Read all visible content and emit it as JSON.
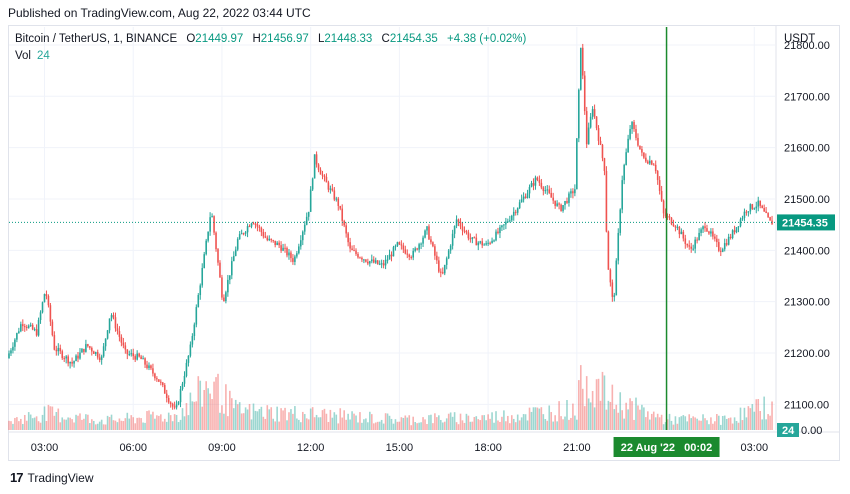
{
  "published": "Published on TradingView.com, Aug 22, 2022 03:44 UTC",
  "legend": {
    "symbol": "Bitcoin / TetherUS, 1, BINANCE",
    "open_key": "O",
    "open": "21449.97",
    "high_key": "H",
    "high": "21456.97",
    "low_key": "L",
    "low": "21448.33",
    "close_key": "C",
    "close": "21454.35",
    "change": "+4.38 (+0.02%)"
  },
  "volume_legend": {
    "label": "Vol",
    "value": "24"
  },
  "currency": "USDT",
  "footer": {
    "logo": "17",
    "brand": "TradingView"
  },
  "colors": {
    "up": "#26a69a",
    "down": "#ef5350",
    "crosshair": "#1b8a2e",
    "last_price": "#089981"
  },
  "chart_data": {
    "type": "candlestick",
    "ylim": [
      21050,
      21835
    ],
    "y_ticks": [
      {
        "value": 21100,
        "label": "21100.00"
      },
      {
        "value": 21200,
        "label": "21200.00"
      },
      {
        "value": 21300,
        "label": "21300.00"
      },
      {
        "value": 21400,
        "label": "21400.00"
      },
      {
        "value": 21500,
        "label": "21500.00"
      },
      {
        "value": 21600,
        "label": "21600.00"
      },
      {
        "value": 21700,
        "label": "21700.00"
      },
      {
        "value": 21800,
        "label": "21800.00"
      }
    ],
    "x_range_hours": [
      1.8,
      27.7
    ],
    "x_ticks": [
      {
        "hour": 3,
        "label": "03:00"
      },
      {
        "hour": 6,
        "label": "06:00"
      },
      {
        "hour": 9,
        "label": "09:00"
      },
      {
        "hour": 12,
        "label": "12:00"
      },
      {
        "hour": 15,
        "label": "15:00"
      },
      {
        "hour": 18,
        "label": "18:00"
      },
      {
        "hour": 21,
        "label": "21:00"
      },
      {
        "hour": 27,
        "label": "03:00"
      }
    ],
    "crosshair": {
      "hour": 24.033,
      "label": "22 Aug '22   00:02"
    },
    "last_price": {
      "value": 21454.35,
      "label": "21454.35"
    },
    "volume_last": {
      "value": 24,
      "label": "24"
    },
    "volume_axis_label": "0.00",
    "price_path": [
      [
        1.8,
        21190
      ],
      [
        2.3,
        21260
      ],
      [
        2.8,
        21240
      ],
      [
        3.1,
        21325
      ],
      [
        3.4,
        21210
      ],
      [
        4.0,
        21180
      ],
      [
        4.5,
        21215
      ],
      [
        5.0,
        21190
      ],
      [
        5.3,
        21280
      ],
      [
        5.8,
        21200
      ],
      [
        6.3,
        21190
      ],
      [
        6.9,
        21150
      ],
      [
        7.5,
        21085
      ],
      [
        8.0,
        21210
      ],
      [
        8.5,
        21400
      ],
      [
        8.7,
        21480
      ],
      [
        9.1,
        21300
      ],
      [
        9.6,
        21420
      ],
      [
        10.1,
        21460
      ],
      [
        10.6,
        21420
      ],
      [
        11.0,
        21410
      ],
      [
        11.5,
        21380
      ],
      [
        12.0,
        21480
      ],
      [
        12.2,
        21580
      ],
      [
        12.5,
        21540
      ],
      [
        13.0,
        21490
      ],
      [
        13.4,
        21400
      ],
      [
        14.0,
        21380
      ],
      [
        14.5,
        21370
      ],
      [
        15.0,
        21410
      ],
      [
        15.5,
        21390
      ],
      [
        16.0,
        21440
      ],
      [
        16.5,
        21345
      ],
      [
        17.0,
        21460
      ],
      [
        17.5,
        21420
      ],
      [
        18.0,
        21410
      ],
      [
        18.5,
        21440
      ],
      [
        19.0,
        21480
      ],
      [
        19.7,
        21540
      ],
      [
        20.5,
        21480
      ],
      [
        21.0,
        21520
      ],
      [
        21.2,
        21800
      ],
      [
        21.4,
        21610
      ],
      [
        21.6,
        21680
      ],
      [
        22.0,
        21560
      ],
      [
        22.1,
        21380
      ],
      [
        22.3,
        21290
      ],
      [
        22.6,
        21540
      ],
      [
        22.9,
        21650
      ],
      [
        23.3,
        21580
      ],
      [
        23.7,
        21570
      ],
      [
        24.0,
        21470
      ],
      [
        24.4,
        21450
      ],
      [
        24.9,
        21400
      ],
      [
        25.4,
        21450
      ],
      [
        25.9,
        21400
      ],
      [
        26.3,
        21430
      ],
      [
        26.8,
        21480
      ],
      [
        27.2,
        21490
      ],
      [
        27.6,
        21454
      ]
    ],
    "volume_path": [
      [
        1.8,
        8
      ],
      [
        3.0,
        16
      ],
      [
        5.0,
        9
      ],
      [
        7.5,
        14
      ],
      [
        8.6,
        44
      ],
      [
        9.5,
        18
      ],
      [
        12.0,
        15
      ],
      [
        15.0,
        10
      ],
      [
        18.0,
        12
      ],
      [
        21.0,
        20
      ],
      [
        21.2,
        52
      ],
      [
        22.2,
        28
      ],
      [
        24.0,
        10
      ],
      [
        26.0,
        10
      ],
      [
        27.6,
        24
      ]
    ]
  }
}
